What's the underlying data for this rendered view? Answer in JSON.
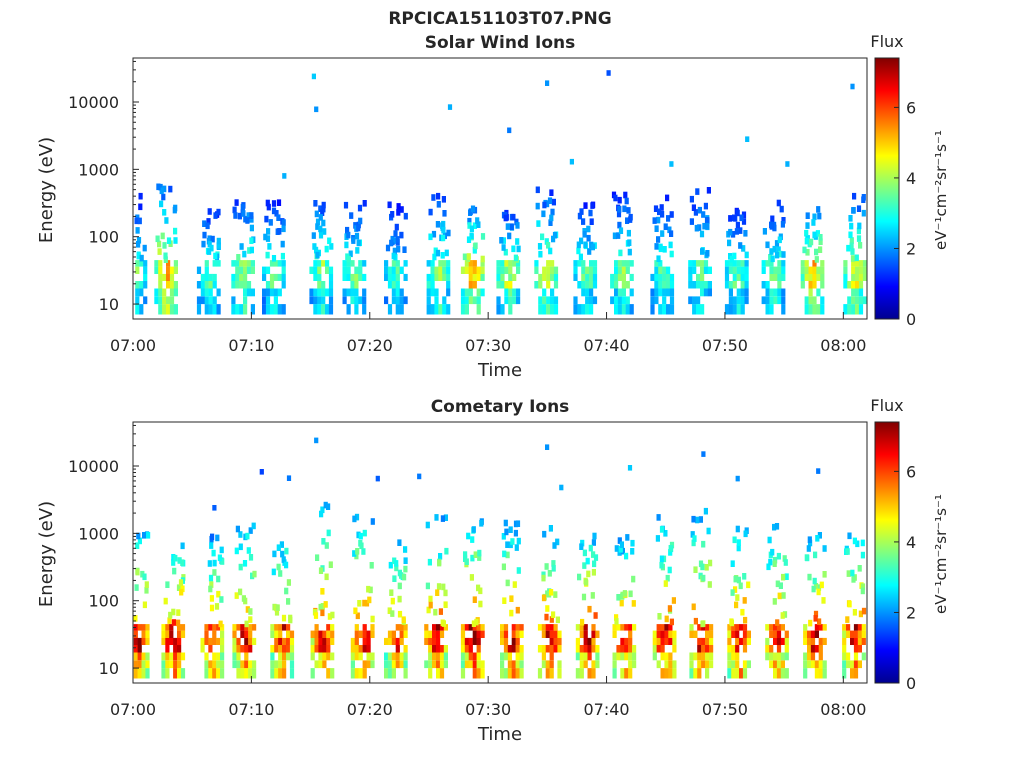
{
  "figure_title": "RPCICA151103T07.PNG",
  "chart_data": [
    {
      "type": "heatmap",
      "title": "Solar Wind Ions",
      "xlabel": "Time",
      "ylabel": "Energy (eV)",
      "x_ticks": [
        "07:00",
        "07:10",
        "07:20",
        "07:30",
        "07:40",
        "07:50",
        "08:00"
      ],
      "x_range_minutes": [
        0,
        62
      ],
      "y_scale": "log",
      "y_ticks": [
        {
          "value": 10,
          "label": "10"
        },
        {
          "value": 100,
          "label": "100"
        },
        {
          "value": 1000,
          "label": "1000"
        },
        {
          "value": 10000,
          "label": "10000"
        }
      ],
      "y_range": [
        6,
        45000
      ],
      "colorbar": {
        "title": "Flux",
        "label": "eV⁻¹cm⁻²sr⁻¹s⁻¹",
        "ticks": [
          "0",
          "2",
          "4",
          "6"
        ],
        "range": [
          0,
          7.4
        ],
        "colormap": "jet"
      },
      "burst_period_minutes": 2.6,
      "bursts": [
        {
          "t": 0.1,
          "core_flux": 3.6,
          "top_energy": 400
        },
        {
          "t": 2.7,
          "core_flux": 5.2,
          "top_energy": 600
        },
        {
          "t": 6.3,
          "core_flux": 3.6,
          "top_energy": 260
        },
        {
          "t": 9.2,
          "core_flux": 4.2,
          "top_energy": 330
        },
        {
          "t": 11.8,
          "core_flux": 3.6,
          "top_energy": 320
        },
        {
          "t": 15.8,
          "core_flux": 3.8,
          "top_energy": 480
        },
        {
          "t": 18.6,
          "core_flux": 3.7,
          "top_energy": 330
        },
        {
          "t": 22.1,
          "core_flux": 3.3,
          "top_energy": 320
        },
        {
          "t": 25.7,
          "core_flux": 4.0,
          "top_energy": 450
        },
        {
          "t": 28.6,
          "core_flux": 5.3,
          "top_energy": 300
        },
        {
          "t": 31.6,
          "core_flux": 4.3,
          "top_energy": 230
        },
        {
          "t": 34.8,
          "core_flux": 4.3,
          "top_energy": 550
        },
        {
          "t": 38.1,
          "core_flux": 3.7,
          "top_energy": 320
        },
        {
          "t": 41.2,
          "core_flux": 3.9,
          "top_energy": 440
        },
        {
          "t": 44.6,
          "core_flux": 3.6,
          "top_energy": 460
        },
        {
          "t": 47.8,
          "core_flux": 3.5,
          "top_energy": 700
        },
        {
          "t": 50.9,
          "core_flux": 3.6,
          "top_energy": 270
        },
        {
          "t": 54.0,
          "core_flux": 3.8,
          "top_energy": 330
        },
        {
          "t": 57.3,
          "core_flux": 5.1,
          "top_energy": 280
        },
        {
          "t": 60.9,
          "core_flux": 4.7,
          "top_energy": 400
        }
      ],
      "isolated_points": [
        {
          "t": 15.1,
          "energy": 24000,
          "flux": 2.4
        },
        {
          "t": 15.3,
          "energy": 7800,
          "flux": 2.0
        },
        {
          "t": 26.6,
          "energy": 8400,
          "flux": 2.2
        },
        {
          "t": 31.6,
          "energy": 3800,
          "flux": 1.8
        },
        {
          "t": 34.8,
          "energy": 19000,
          "flux": 2.0
        },
        {
          "t": 40.0,
          "energy": 27000,
          "flux": 1.5
        },
        {
          "t": 36.9,
          "energy": 1300,
          "flux": 2.3
        },
        {
          "t": 45.3,
          "energy": 1200,
          "flux": 2.3
        },
        {
          "t": 51.7,
          "energy": 2800,
          "flux": 2.3
        },
        {
          "t": 55.1,
          "energy": 1200,
          "flux": 2.2
        },
        {
          "t": 60.6,
          "energy": 17000,
          "flux": 2.0
        },
        {
          "t": 12.6,
          "energy": 800,
          "flux": 2.2
        }
      ]
    },
    {
      "type": "heatmap",
      "title": "Cometary Ions",
      "xlabel": "Time",
      "ylabel": "Energy (eV)",
      "x_ticks": [
        "07:00",
        "07:10",
        "07:20",
        "07:30",
        "07:40",
        "07:50",
        "08:00"
      ],
      "x_range_minutes": [
        0,
        62
      ],
      "y_scale": "log",
      "y_ticks": [
        {
          "value": 10,
          "label": "10"
        },
        {
          "value": 100,
          "label": "100"
        },
        {
          "value": 1000,
          "label": "1000"
        },
        {
          "value": 10000,
          "label": "10000"
        }
      ],
      "y_range": [
        6,
        45000
      ],
      "colorbar": {
        "title": "Flux",
        "label": "eV⁻¹cm⁻²sr⁻¹s⁻¹",
        "ticks": [
          "0",
          "2",
          "4",
          "6"
        ],
        "range": [
          0,
          7.4
        ],
        "colormap": "jet"
      },
      "burst_period_minutes": 2.6,
      "bursts": [
        {
          "t": 0.3,
          "core_flux": 7.0,
          "top_energy": 1200
        },
        {
          "t": 3.3,
          "core_flux": 7.2,
          "top_energy": 700
        },
        {
          "t": 6.6,
          "core_flux": 6.6,
          "top_energy": 900
        },
        {
          "t": 9.3,
          "core_flux": 6.9,
          "top_energy": 1400
        },
        {
          "t": 12.5,
          "core_flux": 6.5,
          "top_energy": 1100
        },
        {
          "t": 15.9,
          "core_flux": 6.8,
          "top_energy": 3000
        },
        {
          "t": 19.3,
          "core_flux": 6.9,
          "top_energy": 1800
        },
        {
          "t": 22.1,
          "core_flux": 6.5,
          "top_energy": 900
        },
        {
          "t": 25.5,
          "core_flux": 6.9,
          "top_energy": 1800
        },
        {
          "t": 28.6,
          "core_flux": 7.3,
          "top_energy": 1900
        },
        {
          "t": 31.9,
          "core_flux": 7.0,
          "top_energy": 1500
        },
        {
          "t": 35.1,
          "core_flux": 6.9,
          "top_energy": 1200
        },
        {
          "t": 38.3,
          "core_flux": 7.1,
          "top_energy": 1000
        },
        {
          "t": 41.4,
          "core_flux": 6.6,
          "top_energy": 900
        },
        {
          "t": 44.8,
          "core_flux": 6.8,
          "top_energy": 1800
        },
        {
          "t": 47.9,
          "core_flux": 6.8,
          "top_energy": 2400
        },
        {
          "t": 51.1,
          "core_flux": 6.9,
          "top_energy": 1400
        },
        {
          "t": 54.3,
          "core_flux": 6.7,
          "top_energy": 1300
        },
        {
          "t": 57.5,
          "core_flux": 7.1,
          "top_energy": 1000
        },
        {
          "t": 60.8,
          "core_flux": 7.0,
          "top_energy": 1300
        }
      ],
      "isolated_points": [
        {
          "t": 15.3,
          "energy": 24000,
          "flux": 2.0
        },
        {
          "t": 10.7,
          "energy": 8200,
          "flux": 1.4
        },
        {
          "t": 20.5,
          "energy": 6500,
          "flux": 1.6
        },
        {
          "t": 34.8,
          "energy": 19000,
          "flux": 2.0
        },
        {
          "t": 36.0,
          "energy": 4800,
          "flux": 2.2
        },
        {
          "t": 41.8,
          "energy": 9400,
          "flux": 2.4
        },
        {
          "t": 48.0,
          "energy": 15000,
          "flux": 1.8
        },
        {
          "t": 50.9,
          "energy": 6500,
          "flux": 2.0
        },
        {
          "t": 57.7,
          "energy": 8400,
          "flux": 1.8
        },
        {
          "t": 6.7,
          "energy": 2400,
          "flux": 1.6
        },
        {
          "t": 24.0,
          "energy": 7000,
          "flux": 1.8
        },
        {
          "t": 13.0,
          "energy": 6600,
          "flux": 1.8
        }
      ]
    }
  ]
}
